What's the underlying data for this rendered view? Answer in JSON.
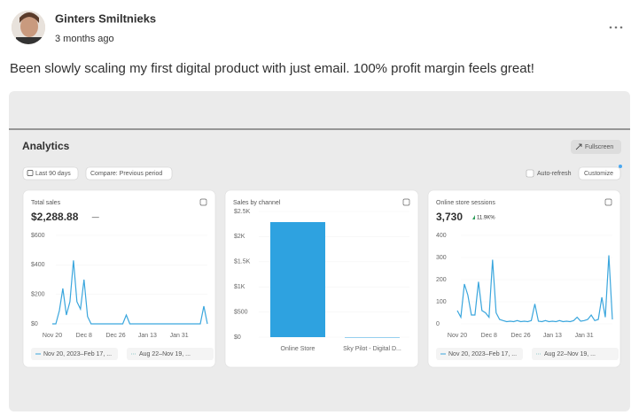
{
  "post": {
    "author": "Ginters Smiltnieks",
    "time": "3 months ago",
    "text": "Been slowly scaling my first digital product with just email. 100% profit margin feels great!"
  },
  "dashboard": {
    "title": "Analytics",
    "fullscreen": "Fullscreen",
    "date_range": "Last 90 days",
    "compare": "Compare: Previous period",
    "auto_refresh": "Auto-refresh",
    "customize": "Customize",
    "cards": [
      {
        "type": "line",
        "title": "Total sales",
        "value": "$2,288.88",
        "change": "—",
        "color": "#3aa6dd",
        "ylim": [
          0,
          600
        ],
        "yticks": [
          {
            "value": 0,
            "label": "$0"
          },
          {
            "value": 200,
            "label": "$200"
          },
          {
            "value": 400,
            "label": "$400"
          },
          {
            "value": 600,
            "label": "$600"
          }
        ],
        "xtick_labels": [
          "Nov 20",
          "Dec 8",
          "Dec 26",
          "Jan 13",
          "Jan 31"
        ],
        "values": [
          0,
          0,
          90,
          240,
          60,
          150,
          430,
          150,
          100,
          300,
          50,
          0,
          0,
          0,
          0,
          0,
          0,
          0,
          0,
          0,
          0,
          60,
          0,
          0,
          0,
          0,
          0,
          0,
          0,
          0,
          0,
          0,
          0,
          0,
          0,
          0,
          0,
          0,
          0,
          0,
          0,
          0,
          0,
          120,
          0
        ],
        "legend": [
          "Nov 20, 2023–Feb 17, ...",
          "Aug 22–Nov 19, ..."
        ]
      },
      {
        "type": "bar",
        "title": "Sales by channel",
        "color": "#2ea2e0",
        "ylim": [
          0,
          2500
        ],
        "yticks": [
          {
            "value": 0,
            "label": "$0"
          },
          {
            "value": 500,
            "label": "$500"
          },
          {
            "value": 1000,
            "label": "$1K"
          },
          {
            "value": 1500,
            "label": "$1.5K"
          },
          {
            "value": 2000,
            "label": "$2K"
          },
          {
            "value": 2500,
            "label": "$2.5K"
          }
        ],
        "categories": [
          "Online Store",
          "Sky Pilot - Digital D..."
        ],
        "values": [
          2288.88,
          0
        ]
      },
      {
        "type": "line",
        "title": "Online store sessions",
        "value": "3,730",
        "change": "11.9K%",
        "color": "#3aa6dd",
        "ylim": [
          0,
          400
        ],
        "yticks": [
          0,
          100,
          200,
          300,
          400
        ],
        "xtick_labels": [
          "Nov 20",
          "Dec 8",
          "Dec 26",
          "Jan 13",
          "Jan 31"
        ],
        "values": [
          60,
          30,
          180,
          130,
          40,
          40,
          190,
          60,
          50,
          30,
          290,
          50,
          20,
          15,
          10,
          12,
          10,
          15,
          10,
          12,
          10,
          15,
          90,
          12,
          10,
          15,
          10,
          12,
          10,
          15,
          10,
          12,
          10,
          15,
          30,
          12,
          15,
          20,
          40,
          15,
          20,
          120,
          30,
          310,
          20
        ],
        "legend": [
          "Nov 20, 2023–Feb 17, ...",
          "Aug 22–Nov 19, ..."
        ]
      }
    ]
  }
}
